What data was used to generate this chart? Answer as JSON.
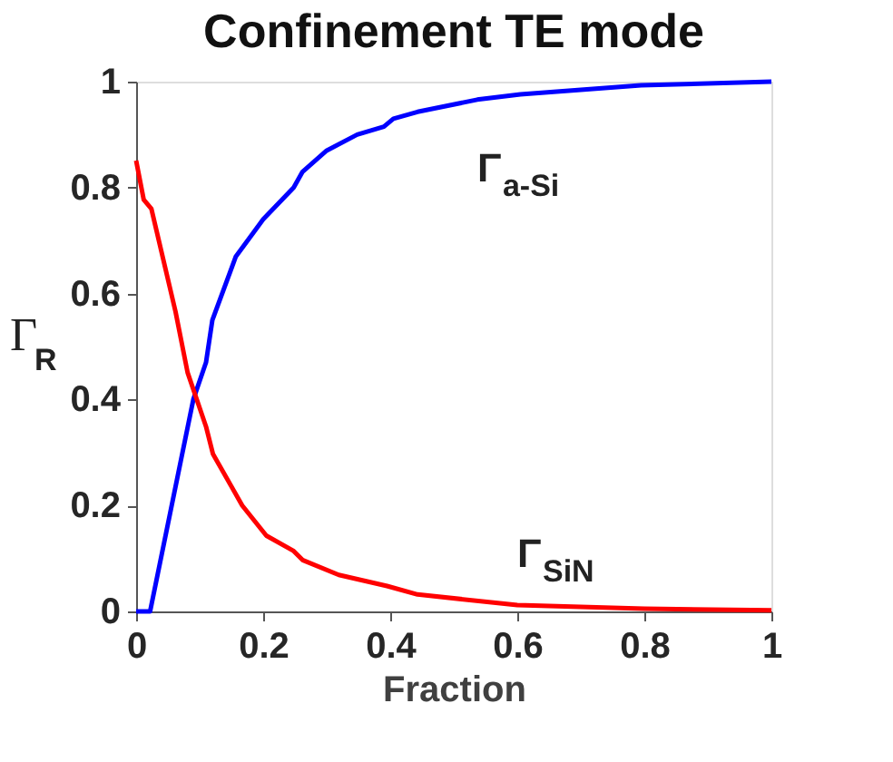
{
  "chart_data": {
    "type": "line",
    "title": "Confinement TE mode",
    "xlabel": "Fraction",
    "ylabel": "Γ$_{R}$",
    "xlim": [
      0,
      1
    ],
    "ylim": [
      0,
      1
    ],
    "xticks": [
      0,
      0.2,
      0.4,
      0.6,
      0.8,
      1
    ],
    "yticks": [
      0,
      0.2,
      0.4,
      0.6,
      0.8,
      1
    ],
    "grid": false,
    "series": [
      {
        "name": "Γ$_{a-Si}$",
        "color": "#0000ff",
        "x": [
          0,
          0.022,
          0.09,
          0.11,
          0.12,
          0.157,
          0.2,
          0.248,
          0.262,
          0.3,
          0.348,
          0.39,
          0.405,
          0.443,
          0.537,
          0.605,
          0.795,
          1.0
        ],
        "values": [
          0,
          0,
          0.4,
          0.47,
          0.55,
          0.67,
          0.74,
          0.8,
          0.83,
          0.87,
          0.9,
          0.915,
          0.93,
          0.943,
          0.966,
          0.976,
          0.993,
          1.0
        ]
      },
      {
        "name": "Γ$_{SiN}$",
        "color": "#ff0000",
        "x": [
          0,
          0.012,
          0.024,
          0.062,
          0.081,
          0.11,
          0.121,
          0.167,
          0.205,
          0.248,
          0.262,
          0.319,
          0.395,
          0.443,
          0.6,
          0.8,
          1.0
        ],
        "values": [
          0.851,
          0.777,
          0.76,
          0.566,
          0.451,
          0.349,
          0.297,
          0.2,
          0.143,
          0.114,
          0.097,
          0.069,
          0.048,
          0.032,
          0.012,
          0.005,
          0.002
        ]
      }
    ]
  }
}
